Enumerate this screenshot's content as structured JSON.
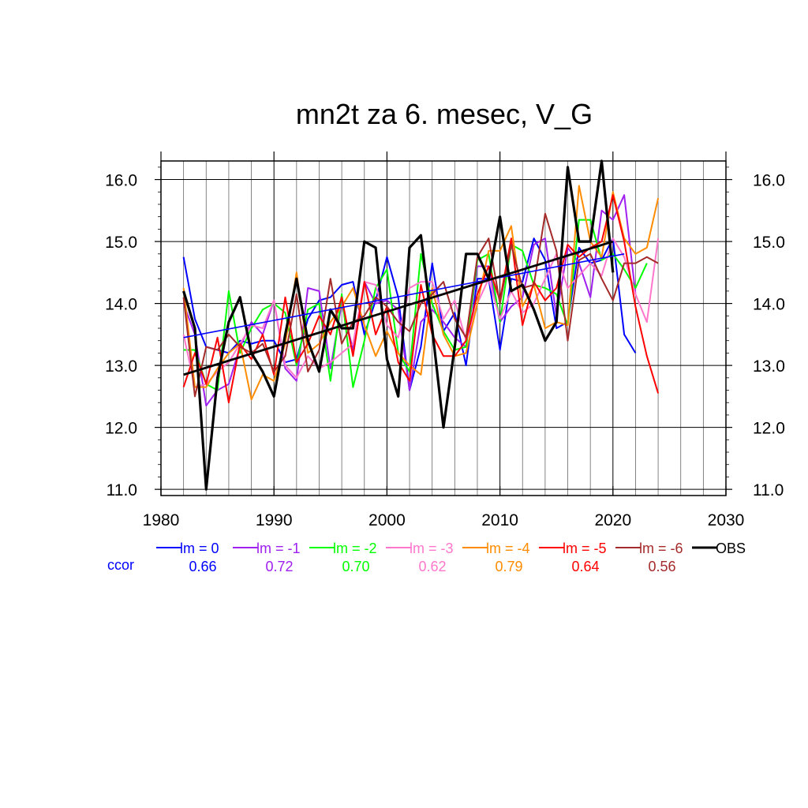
{
  "chart_data": {
    "type": "line",
    "title": "mn2t za 6. mesec, V_G",
    "xlabel": "",
    "ylabel": "",
    "xlim": [
      1980,
      2030
    ],
    "ylim": [
      10.9,
      16.3
    ],
    "xticks": [
      1980,
      1990,
      2000,
      2010,
      2020,
      2030
    ],
    "yticks": [
      11.0,
      12.0,
      13.0,
      14.0,
      15.0,
      16.0
    ],
    "ytick_labels": [
      "11.0",
      "12.0",
      "13.0",
      "14.0",
      "15.0",
      "16.0"
    ],
    "grid": true,
    "legend_position": "bottom",
    "ccor_label": "ccor",
    "series": [
      {
        "name": "lm = 0",
        "color": "#0000ff",
        "ccor": "0.66",
        "start": 1982,
        "values": [
          14.75,
          13.75,
          13.3,
          13.25,
          13.2,
          13.4,
          13.35,
          13.4,
          13.4,
          13.05,
          13.1,
          13.75,
          14.05,
          14.1,
          14.3,
          14.35,
          13.5,
          14.05,
          14.75,
          14.1,
          12.6,
          13.3,
          14.65,
          13.55,
          13.85,
          13.0,
          14.4,
          14.4,
          13.25,
          14.4,
          14.35,
          15.05,
          14.7,
          13.6,
          13.7,
          14.9,
          14.65,
          14.7,
          15.05,
          13.5,
          13.2
        ],
        "trend": [
          [
            1982,
            13.45
          ],
          [
            2021,
            14.8
          ]
        ]
      },
      {
        "name": "lm = -1",
        "color": "#a020f0",
        "ccor": "0.72",
        "start": 1982,
        "values": [
          14.0,
          13.5,
          12.35,
          12.6,
          12.7,
          13.3,
          13.7,
          13.5,
          14.05,
          12.95,
          12.75,
          14.25,
          14.2,
          12.95,
          14.0,
          13.25,
          14.35,
          14.0,
          14.05,
          13.9,
          12.6,
          13.7,
          13.9,
          13.7,
          13.45,
          13.3,
          14.6,
          14.6,
          13.7,
          13.95,
          14.1,
          14.95,
          15.05,
          13.8,
          14.9,
          14.65,
          14.1,
          15.5,
          15.35,
          15.75,
          14.15
        ]
      },
      {
        "name": "lm = -2",
        "color": "#00ff00",
        "ccor": "0.70",
        "start": 1982,
        "values": [
          13.25,
          13.25,
          12.7,
          12.6,
          14.2,
          13.2,
          13.6,
          13.9,
          14.0,
          13.85,
          13.0,
          13.9,
          14.0,
          12.75,
          14.15,
          12.65,
          13.4,
          14.25,
          14.55,
          13.2,
          12.9,
          14.8,
          14.0,
          13.55,
          13.25,
          13.3,
          14.7,
          14.8,
          13.7,
          14.95,
          14.85,
          14.3,
          14.25,
          14.15,
          13.65,
          15.35,
          15.35,
          14.7,
          14.8,
          14.55,
          14.25,
          14.65
        ]
      },
      {
        "name": "lm = -3",
        "color": "#ff77cc",
        "ccor": "0.62",
        "start": 1982,
        "values": [
          13.5,
          12.65,
          12.7,
          12.9,
          13.05,
          13.35,
          13.65,
          13.6,
          14.05,
          13.0,
          12.8,
          13.15,
          12.95,
          13.05,
          13.2,
          13.35,
          14.35,
          14.3,
          13.65,
          13.45,
          14.25,
          14.35,
          14.35,
          13.75,
          14.05,
          13.4,
          14.0,
          14.4,
          13.75,
          14.2,
          13.85,
          14.0,
          14.4,
          14.8,
          14.25,
          14.45,
          14.65,
          14.45,
          15.05,
          14.75,
          14.15,
          13.7,
          15.05
        ]
      },
      {
        "name": "lm = -4",
        "color": "#ff8c00",
        "ccor": "0.79",
        "start": 1982,
        "values": [
          14.25,
          12.65,
          12.65,
          12.95,
          13.2,
          13.35,
          12.45,
          12.85,
          12.75,
          13.35,
          14.5,
          13.2,
          13.35,
          13.7,
          13.95,
          14.25,
          13.65,
          13.15,
          13.55,
          13.2,
          13.0,
          12.85,
          14.25,
          13.5,
          13.15,
          13.2,
          14.0,
          14.85,
          14.85,
          15.25,
          13.95,
          14.3,
          13.6,
          13.7,
          13.65,
          15.9,
          15.0,
          14.75,
          15.8,
          15.05,
          14.8,
          14.9,
          15.7
        ]
      },
      {
        "name": "lm = -5",
        "color": "#ff0000",
        "ccor": "0.64",
        "start": 1982,
        "values": [
          12.65,
          13.2,
          12.7,
          13.45,
          12.4,
          13.35,
          13.1,
          13.5,
          12.85,
          14.1,
          13.05,
          13.35,
          13.8,
          13.5,
          14.1,
          13.15,
          14.35,
          13.5,
          13.95,
          13.05,
          12.75,
          14.3,
          13.5,
          13.15,
          13.15,
          13.4,
          14.15,
          14.6,
          14.05,
          15.05,
          13.65,
          14.35,
          14.05,
          14.25,
          14.95,
          14.75,
          14.9,
          15.0,
          15.75,
          15.0,
          13.95,
          13.15,
          12.55
        ]
      },
      {
        "name": "lm = -6",
        "color": "#a52a2a",
        "ccor": "0.56",
        "start": 1982,
        "values": [
          14.1,
          12.5,
          13.3,
          13.25,
          13.5,
          13.3,
          13.2,
          13.35,
          12.9,
          13.15,
          14.15,
          12.9,
          13.25,
          14.4,
          13.35,
          13.7,
          13.8,
          14.1,
          13.95,
          13.7,
          13.55,
          14.0,
          14.15,
          14.35,
          13.75,
          13.45,
          14.75,
          15.05,
          14.0,
          14.95,
          14.25,
          14.3,
          15.45,
          14.85,
          13.4,
          14.7,
          14.8,
          14.4,
          14.05,
          14.65,
          14.65,
          14.75,
          14.65
        ]
      },
      {
        "name": "OBS",
        "color": "#000000",
        "ccor": "",
        "start": 1982,
        "values": [
          14.2,
          13.6,
          11.0,
          12.8,
          13.7,
          14.1,
          13.2,
          12.9,
          12.5,
          13.5,
          14.4,
          13.4,
          12.9,
          13.9,
          13.6,
          13.6,
          15.0,
          14.9,
          13.1,
          12.5,
          14.9,
          15.1,
          13.6,
          12.0,
          13.3,
          14.8,
          14.8,
          14.4,
          15.4,
          14.2,
          14.3,
          13.9,
          13.4,
          13.7,
          16.2,
          15.0,
          15.0,
          16.3,
          14.5
        ],
        "trend": [
          [
            1982,
            12.85
          ],
          [
            2020,
            15.0
          ]
        ]
      }
    ]
  }
}
